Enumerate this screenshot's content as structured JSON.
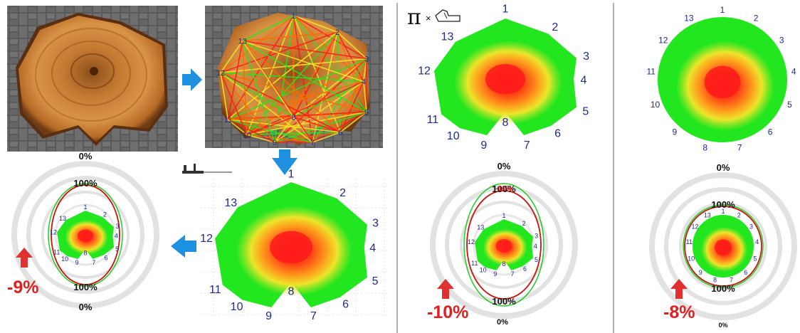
{
  "sensor_labels": [
    "1",
    "2",
    "3",
    "4",
    "5",
    "6",
    "7",
    "8",
    "9",
    "10",
    "11",
    "12",
    "13"
  ],
  "percent_labels": {
    "zero": "0%",
    "hundred": "100%",
    "minus10_small": "-10%"
  },
  "reductions": {
    "panel_a": "-9%",
    "panel_b": "-10%",
    "panel_c": "-8%"
  },
  "pi_symbol": "π",
  "pi_times": "×",
  "colors": {
    "arrow_blue": "#1e90e0",
    "arrow_red": "#e03030",
    "sound_green": "#22e61e",
    "decay_red": "#ff1a1a",
    "decay_yellow": "#f5e623",
    "ring_green": "#22cc22",
    "ring_red": "#cc1111",
    "number_blue": "#1f2a8c",
    "divider": "#999999"
  }
}
